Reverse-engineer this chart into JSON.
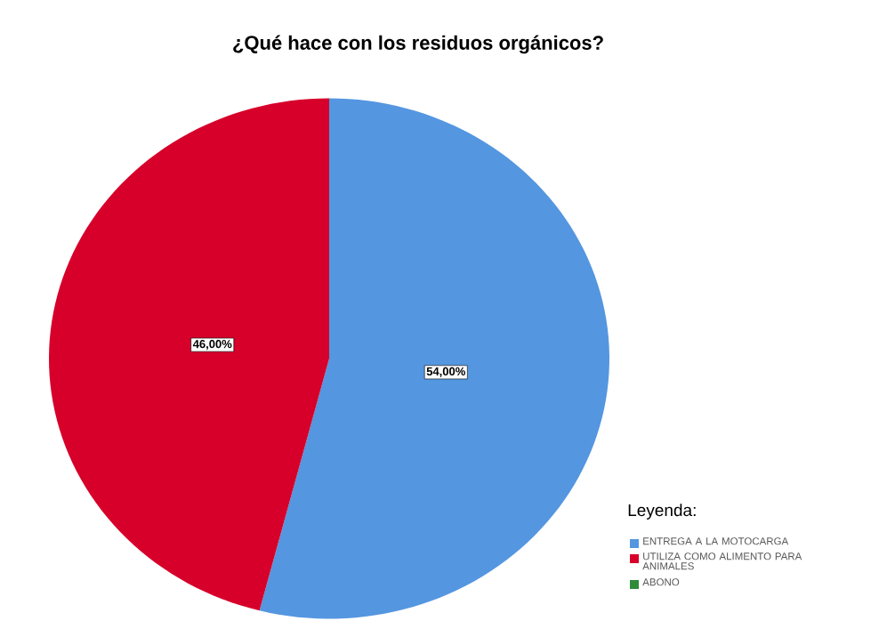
{
  "chart_data": {
    "type": "pie",
    "title": "¿Qué hace con los residuos orgánicos?",
    "legend_title": "Leyenda:",
    "categories": [
      "ENTREGA A LA MOTOCARGA",
      "UTILIZA COMO ALIMENTO PARA ANIMALES",
      "ABONO"
    ],
    "values": [
      54,
      46,
      0
    ],
    "colors": [
      "#5496e0",
      "#d6002a",
      "#2e8b3a"
    ],
    "value_labels": [
      "54,00%",
      "46,00%",
      null
    ],
    "legend": "bottom right"
  }
}
